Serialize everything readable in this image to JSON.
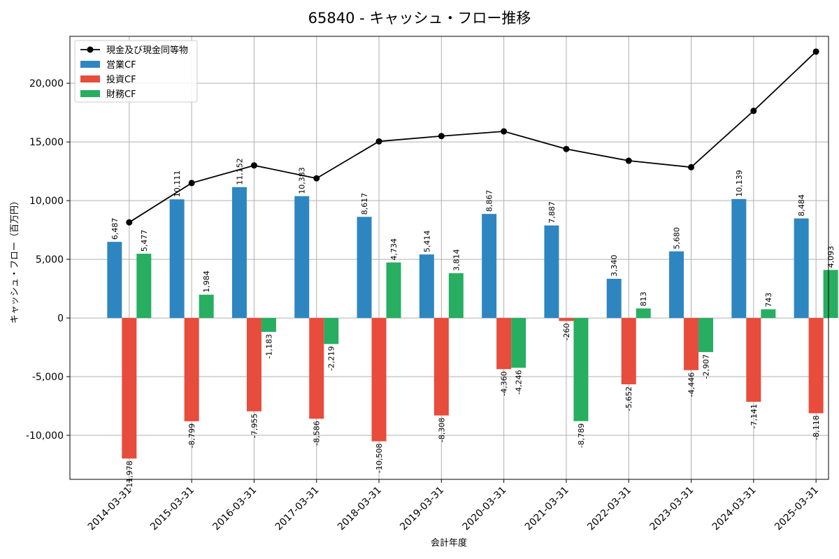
{
  "chart_data": {
    "type": "bar",
    "title": "65840 - キャッシュ・フロー推移",
    "xlabel": "会計年度",
    "ylabel": "キャッシュ・フロー（百万円）",
    "categories": [
      "2014-03-31",
      "2015-03-31",
      "2016-03-31",
      "2017-03-31",
      "2018-03-31",
      "2019-03-31",
      "2020-03-31",
      "2021-03-31",
      "2022-03-31",
      "2023-03-31",
      "2024-03-31",
      "2025-03-31"
    ],
    "series": [
      {
        "name": "営業CF",
        "kind": "bar",
        "color": "#2e86c1",
        "values": [
          6487,
          10111,
          11152,
          10383,
          8617,
          5414,
          8867,
          7887,
          3340,
          5680,
          10139,
          8484
        ],
        "labels": [
          "6,487",
          "10,111",
          "11,152",
          "10,383",
          "8,617",
          "5,414",
          "8,867",
          "7,887",
          "3,340",
          "5,680",
          "10,139",
          "8,484"
        ]
      },
      {
        "name": "投資CF",
        "kind": "bar",
        "color": "#e74c3c",
        "values": [
          -11978,
          -8799,
          -7955,
          -8586,
          -10508,
          -8308,
          -4360,
          -260,
          -5652,
          -4446,
          -7141,
          -8118
        ],
        "labels": [
          "-11,978",
          "-8,799",
          "-7,955",
          "-8,586",
          "-10,508",
          "-8,308",
          "-4,360",
          "-260",
          "-5,652",
          "-4,446",
          "-7,141",
          "-8,118"
        ]
      },
      {
        "name": "財務CF",
        "kind": "bar",
        "color": "#27ae60",
        "values": [
          5477,
          1984,
          -1183,
          -2219,
          4734,
          3814,
          -4246,
          -8789,
          813,
          -2907,
          743,
          4093
        ],
        "labels": [
          "5,477",
          "1,984",
          "-1,183",
          "-2,219",
          "4,734",
          "3,814",
          "-4,246",
          "-8,789",
          "813",
          "-2,907",
          "743",
          "4,093"
        ]
      },
      {
        "name": "現金及び現金同等物",
        "kind": "line",
        "color": "#000000",
        "values": [
          8150,
          11500,
          13000,
          11900,
          15050,
          15500,
          15900,
          14400,
          13400,
          12850,
          17650,
          22700
        ]
      }
    ],
    "ylim": [
      -13750,
      24000
    ],
    "yticks": [
      -10000,
      -5000,
      0,
      5000,
      10000,
      15000,
      20000
    ],
    "ytick_labels": [
      "-10,000",
      "-5,000",
      "0",
      "5,000",
      "10,000",
      "15,000",
      "20,000"
    ],
    "grid": true,
    "legend": "top-left"
  }
}
